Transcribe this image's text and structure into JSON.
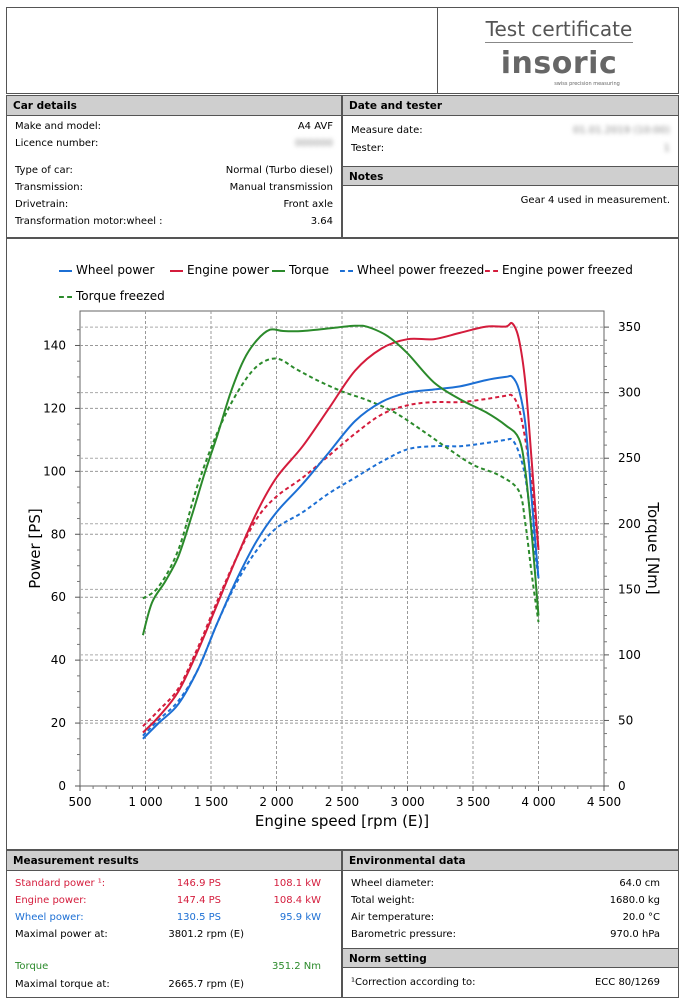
{
  "header": {
    "title": "Test certificate",
    "brand": "insoric",
    "tagline": "swiss precision measuring"
  },
  "car_details": {
    "heading": "Car details",
    "make_model_label": "Make and model:",
    "make_model_value": "A4 AVF",
    "licence_label": "Licence number:",
    "licence_value": "000000",
    "type_label": "Type of car:",
    "type_value": "Normal (Turbo diesel)",
    "transmission_label": "Transmission:",
    "transmission_value": "Manual transmission",
    "drivetrain_label": "Drivetrain:",
    "drivetrain_value": "Front axle",
    "transformation_label": "Transformation motor:wheel :",
    "transformation_value": "3.64"
  },
  "date_tester": {
    "heading": "Date and tester",
    "measure_date_label": "Measure date:",
    "measure_date_value": "01.01.2019 (10:00)",
    "tester_label": "Tester:",
    "tester_value": "1"
  },
  "notes": {
    "heading": "Notes",
    "text": "Gear 4 used in measurement."
  },
  "chart_data": {
    "type": "line",
    "xlabel": "Engine speed [rpm (E)]",
    "ylabel": "Power [PS]",
    "y2label": "Torque [Nm]",
    "xlim": [
      500,
      4500
    ],
    "ylim": [
      0,
      150
    ],
    "y2lim": [
      0,
      360
    ],
    "x_ticks": [
      "500",
      "1 000",
      "1 500",
      "2 000",
      "2 500",
      "3 000",
      "3 500",
      "4 000",
      "4 500"
    ],
    "y_ticks": [
      "0",
      "20",
      "40",
      "60",
      "80",
      "100",
      "120",
      "140"
    ],
    "y2_ticks": [
      "0",
      "50",
      "100",
      "150",
      "200",
      "250",
      "300",
      "350"
    ],
    "grid": true,
    "legend_position": "top",
    "series": [
      {
        "name": "Wheel power",
        "axis": "left",
        "color": "#1c6fd4",
        "dash": "solid",
        "x": [
          980,
          1100,
          1250,
          1400,
          1550,
          1700,
          1850,
          2000,
          2200,
          2400,
          2600,
          2800,
          3000,
          3200,
          3400,
          3600,
          3750,
          3800,
          3850,
          3900,
          3950,
          4000
        ],
        "y": [
          15,
          20,
          26,
          37,
          52,
          66,
          78,
          87,
          96,
          106,
          116,
          122,
          125,
          126,
          127,
          129,
          130,
          130,
          126,
          115,
          90,
          66
        ]
      },
      {
        "name": "Engine power",
        "axis": "left",
        "color": "#d41c3c",
        "dash": "solid",
        "x": [
          980,
          1100,
          1250,
          1400,
          1550,
          1700,
          1850,
          2000,
          2200,
          2400,
          2600,
          2800,
          3000,
          3200,
          3400,
          3600,
          3750,
          3800,
          3850,
          3900,
          3950,
          4000
        ],
        "y": [
          17,
          22,
          30,
          43,
          58,
          73,
          87,
          98,
          108,
          120,
          132,
          139,
          142,
          142,
          144,
          146,
          146,
          147,
          142,
          128,
          102,
          75
        ]
      },
      {
        "name": "Torque",
        "axis": "right",
        "color": "#2b8a2b",
        "dash": "solid",
        "x": [
          980,
          1050,
          1150,
          1250,
          1350,
          1450,
          1550,
          1650,
          1750,
          1850,
          1950,
          2050,
          2200,
          2400,
          2600,
          2700,
          2850,
          3000,
          3200,
          3400,
          3600,
          3750,
          3850,
          3900,
          3950,
          4000
        ],
        "y": [
          115,
          140,
          156,
          175,
          205,
          238,
          268,
          300,
          325,
          340,
          348,
          347,
          347,
          349,
          351,
          350,
          343,
          330,
          308,
          295,
          285,
          275,
          265,
          240,
          190,
          130
        ]
      },
      {
        "name": "Wheel power freezed",
        "axis": "left",
        "color": "#1c6fd4",
        "dash": "dashed",
        "x": [
          980,
          1100,
          1250,
          1400,
          1550,
          1700,
          1850,
          2000,
          2200,
          2400,
          2600,
          2800,
          3000,
          3200,
          3400,
          3600,
          3750,
          3800,
          3850,
          3900,
          3950,
          4000
        ],
        "y": [
          16,
          21,
          27,
          37,
          52,
          65,
          75,
          82,
          87,
          93,
          98,
          103,
          107,
          108,
          108,
          109,
          110,
          110,
          106,
          98,
          82,
          66
        ]
      },
      {
        "name": "Engine power freezed",
        "axis": "left",
        "color": "#d41c3c",
        "dash": "dashed",
        "x": [
          980,
          1100,
          1250,
          1400,
          1550,
          1700,
          1850,
          2000,
          2200,
          2400,
          2600,
          2800,
          3000,
          3200,
          3400,
          3600,
          3750,
          3800,
          3850,
          3900,
          3950,
          4000
        ],
        "y": [
          19,
          24,
          31,
          44,
          59,
          73,
          85,
          92,
          98,
          105,
          112,
          118,
          121,
          122,
          122,
          123,
          124,
          124,
          120,
          110,
          95,
          75
        ]
      },
      {
        "name": "Torque freezed",
        "axis": "right",
        "color": "#2b8a2b",
        "dash": "dashed",
        "x": [
          980,
          1100,
          1250,
          1400,
          1550,
          1700,
          1850,
          2000,
          2150,
          2300,
          2500,
          2700,
          2900,
          3100,
          3300,
          3500,
          3700,
          3850,
          3900,
          3950,
          4000
        ],
        "y": [
          143,
          152,
          180,
          230,
          270,
          300,
          320,
          326,
          318,
          310,
          301,
          294,
          285,
          272,
          258,
          245,
          237,
          225,
          200,
          160,
          125
        ]
      }
    ]
  },
  "measurement_results": {
    "heading": "Measurement results",
    "standard_label": "Standard power ¹:",
    "standard_ps": "146.9 PS",
    "standard_kw": "108.1 kW",
    "engine_label": "Engine power:",
    "engine_ps": "147.4 PS",
    "engine_kw": "108.4 kW",
    "wheel_label": "Wheel power:",
    "wheel_ps": "130.5 PS",
    "wheel_kw": "95.9 kW",
    "max_power_label": "Maximal power at:",
    "max_power_value": "3801.2 rpm (E)",
    "torque_label": "Torque",
    "torque_value": "351.2 Nm",
    "max_torque_label": "Maximal torque at:",
    "max_torque_value": "2665.7 rpm (E)"
  },
  "environmental": {
    "heading": "Environmental data",
    "wheel_diameter_label": "Wheel diameter:",
    "wheel_diameter_value": "64.0 cm",
    "total_weight_label": "Total weight:",
    "total_weight_value": "1680.0 kg",
    "air_temp_label": "Air temperature:",
    "air_temp_value": "20.0 °C",
    "baro_label": "Barometric pressure:",
    "baro_value": "970.0 hPa"
  },
  "norm": {
    "heading": "Norm setting",
    "correction_label": "¹Correction according to:",
    "correction_value": "ECC 80/1269"
  }
}
